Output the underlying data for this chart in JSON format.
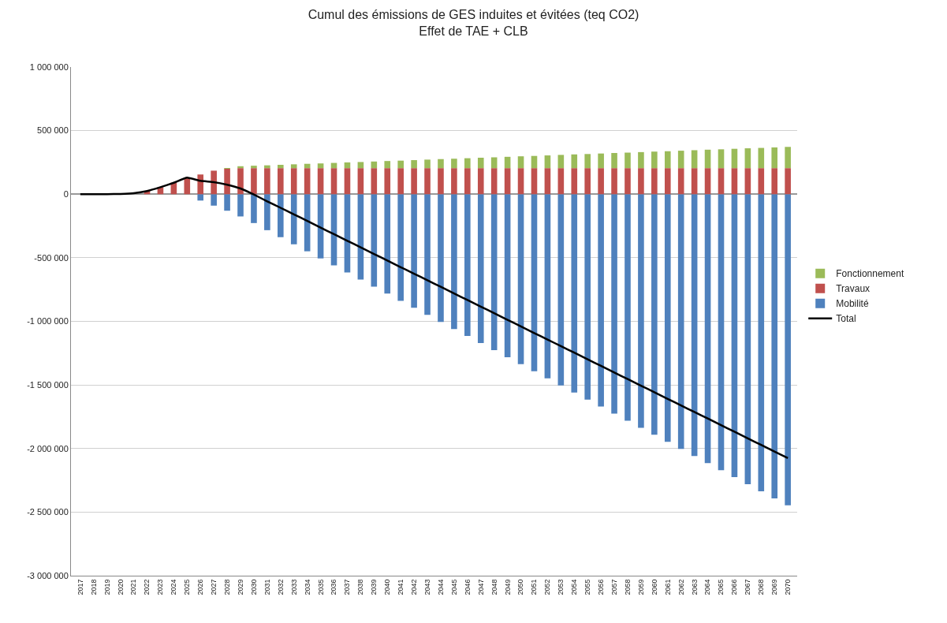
{
  "chart_data": {
    "type": "bar",
    "stacked": true,
    "title": "Cumul des émissions de GES induites et évitées (teq CO2)\nEffet de TAE + CLB",
    "categories": [
      "2017",
      "2018",
      "2019",
      "2020",
      "2021",
      "2022",
      "2023",
      "2024",
      "2025",
      "2026",
      "2027",
      "2028",
      "2029",
      "2030",
      "2031",
      "2032",
      "2033",
      "2034",
      "2035",
      "2036",
      "2037",
      "2038",
      "2039",
      "2040",
      "2041",
      "2042",
      "2043",
      "2044",
      "2045",
      "2046",
      "2047",
      "2048",
      "2049",
      "2050",
      "2051",
      "2052",
      "2053",
      "2054",
      "2055",
      "2056",
      "2057",
      "2058",
      "2059",
      "2060",
      "2061",
      "2062",
      "2063",
      "2064",
      "2065",
      "2066",
      "2067",
      "2068",
      "2069",
      "2070"
    ],
    "series": [
      {
        "name": "Mobilité",
        "color": "#4f81bd",
        "values": [
          0,
          0,
          0,
          0,
          0,
          0,
          0,
          0,
          0,
          -50000,
          -90000,
          -130000,
          -175000,
          -227000,
          -283000,
          -338000,
          -394000,
          -449000,
          -505000,
          -560000,
          -616000,
          -671000,
          -727000,
          -782000,
          -838000,
          -893000,
          -949000,
          -1004000,
          -1060000,
          -1115000,
          -1171000,
          -1226000,
          -1282000,
          -1337000,
          -1393000,
          -1448000,
          -1504000,
          -1559000,
          -1615000,
          -1670000,
          -1726000,
          -1781000,
          -1837000,
          -1892000,
          -1948000,
          -2003000,
          -2059000,
          -2114000,
          -2170000,
          -2225000,
          -2281000,
          -2336000,
          -2392000,
          -2447000
        ]
      },
      {
        "name": "Travaux",
        "color": "#c0504d",
        "values": [
          0,
          0,
          0,
          2000,
          null,
          25000,
          55000,
          90000,
          130000,
          155000,
          185000,
          200000,
          205000,
          205000,
          205000,
          205000,
          205000,
          205000,
          205000,
          205000,
          205000,
          205000,
          205000,
          205000,
          205000,
          205000,
          205000,
          205000,
          205000,
          205000,
          205000,
          205000,
          205000,
          205000,
          205000,
          205000,
          205000,
          205000,
          205000,
          205000,
          205000,
          205000,
          205000,
          205000,
          205000,
          205000,
          205000,
          205000,
          205000,
          205000,
          205000,
          205000,
          205000,
          205000
        ]
      },
      {
        "name": "Fonctionnement",
        "color": "#9bbb59",
        "values": [
          0,
          0,
          0,
          0,
          0,
          0,
          0,
          0,
          0,
          0,
          0,
          5000,
          15000,
          19000,
          22000,
          26000,
          30000,
          34000,
          37000,
          41000,
          45000,
          48000,
          52000,
          56000,
          59000,
          63000,
          67000,
          71000,
          74000,
          78000,
          82000,
          85000,
          89000,
          93000,
          96000,
          100000,
          104000,
          108000,
          111000,
          115000,
          119000,
          122000,
          126000,
          130000,
          133000,
          137000,
          141000,
          145000,
          148000,
          152000,
          156000,
          159000,
          163000,
          167000
        ]
      },
      {
        "name": "Total",
        "type": "line",
        "color": "#000000",
        "values": [
          0,
          0,
          0,
          2000,
          8000,
          25000,
          55000,
          90000,
          130000,
          105000,
          95000,
          75000,
          45000,
          -3000,
          -56000,
          -107000,
          -159000,
          -210000,
          -263000,
          -314000,
          -366000,
          -418000,
          -470000,
          -521000,
          -574000,
          -625000,
          -677000,
          -728000,
          -781000,
          -832000,
          -884000,
          -936000,
          -988000,
          -1039000,
          -1092000,
          -1143000,
          -1195000,
          -1246000,
          -1299000,
          -1350000,
          -1402000,
          -1454000,
          -1506000,
          -1557000,
          -1610000,
          -1661000,
          -1713000,
          -1764000,
          -1817000,
          -1868000,
          -1920000,
          -1972000,
          -2024000,
          -2075000
        ]
      }
    ],
    "ylim": [
      -3000000,
      1000000
    ],
    "yticks": [
      {
        "value": -3000000,
        "label": "-3 000 000"
      },
      {
        "value": -2500000,
        "label": "-2 500 000"
      },
      {
        "value": -2000000,
        "label": "-2 000 000"
      },
      {
        "value": -1500000,
        "label": "-1 500 000"
      },
      {
        "value": -1000000,
        "label": "-1 000 000"
      },
      {
        "value": -500000,
        "label": "-500 000"
      },
      {
        "value": 0,
        "label": "0"
      },
      {
        "value": 500000,
        "label": "500 000"
      },
      {
        "value": 1000000,
        "label": "1 000 000"
      }
    ],
    "grid": "y",
    "legend": "right",
    "marker": "none",
    "line_style": "solid"
  }
}
